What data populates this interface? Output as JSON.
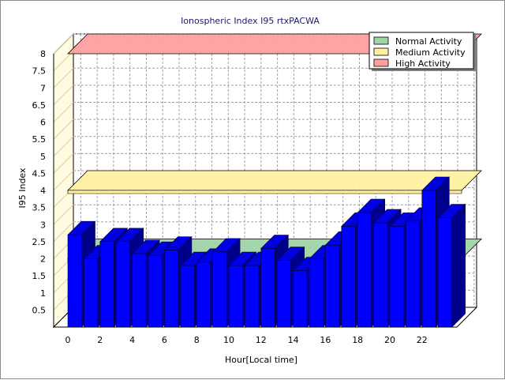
{
  "chart_data": {
    "type": "bar",
    "title": "Ionospheric Index I95 rtxPACWA",
    "xlabel": "Hour[Local time]",
    "ylabel": "I95 Index",
    "ylim": [
      0,
      8
    ],
    "y_ticks": [
      "0.5",
      "1",
      "1.5",
      "2",
      "2.5",
      "3",
      "3.5",
      "4",
      "4.5",
      "5",
      "5.5",
      "6",
      "6.5",
      "7",
      "7.5",
      "8"
    ],
    "x_ticks": [
      "0",
      "2",
      "4",
      "6",
      "8",
      "10",
      "12",
      "14",
      "16",
      "18",
      "20",
      "22"
    ],
    "x": [
      0,
      1,
      2,
      3,
      4,
      5,
      6,
      7,
      8,
      9,
      10,
      11,
      12,
      13,
      14,
      15,
      16,
      17,
      18,
      19,
      20,
      21,
      22,
      23
    ],
    "values": [
      2.7,
      2.0,
      2.5,
      2.5,
      2.15,
      2.1,
      2.25,
      1.8,
      1.9,
      2.2,
      1.8,
      1.8,
      2.3,
      1.95,
      1.65,
      2.0,
      2.4,
      2.95,
      3.35,
      3.05,
      2.95,
      3.1,
      4.0,
      3.2
    ],
    "bands": [
      {
        "name": "Normal Activity",
        "from": 2.0,
        "color": "#9fd4a6"
      },
      {
        "name": "Medium Activity",
        "from": 4.0,
        "color": "#fff0a0"
      },
      {
        "name": "High Activity",
        "from": 8.0,
        "color": "#ff9f9f"
      }
    ],
    "bar_color": "#0000ff",
    "bar_side_color": "#00008b",
    "bar_top_color": "#0000e0",
    "grid": true,
    "legend_position": "top-right"
  }
}
